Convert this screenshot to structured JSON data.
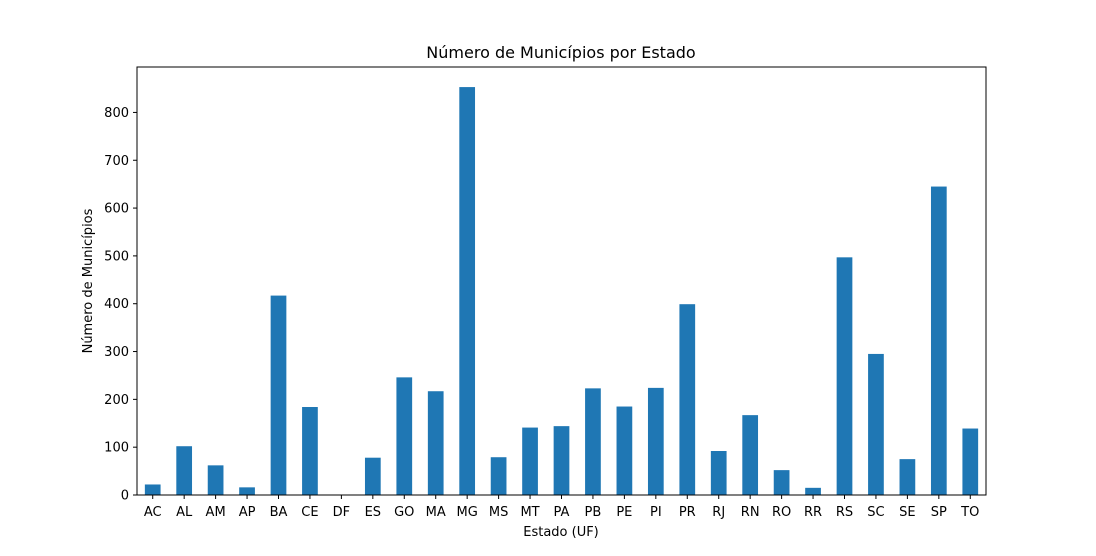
{
  "chart_data": {
    "type": "bar",
    "title": "Número de Municípios por Estado",
    "xlabel": "Estado (UF)",
    "ylabel": "Número de Municípios",
    "categories": [
      "AC",
      "AL",
      "AM",
      "AP",
      "BA",
      "CE",
      "DF",
      "ES",
      "GO",
      "MA",
      "MG",
      "MS",
      "MT",
      "PA",
      "PB",
      "PE",
      "PI",
      "PR",
      "RJ",
      "RN",
      "RO",
      "RR",
      "RS",
      "SC",
      "SE",
      "SP",
      "TO"
    ],
    "values": [
      22,
      102,
      62,
      16,
      417,
      184,
      1,
      78,
      246,
      217,
      853,
      79,
      141,
      144,
      223,
      185,
      224,
      399,
      92,
      167,
      52,
      15,
      497,
      295,
      75,
      645,
      139
    ],
    "ylim": [
      0,
      895
    ],
    "yticks": [
      0,
      100,
      200,
      300,
      400,
      500,
      600,
      700,
      800
    ],
    "grid": false,
    "colors": {
      "bar": "#1f77b4",
      "axis": "#000000"
    }
  }
}
